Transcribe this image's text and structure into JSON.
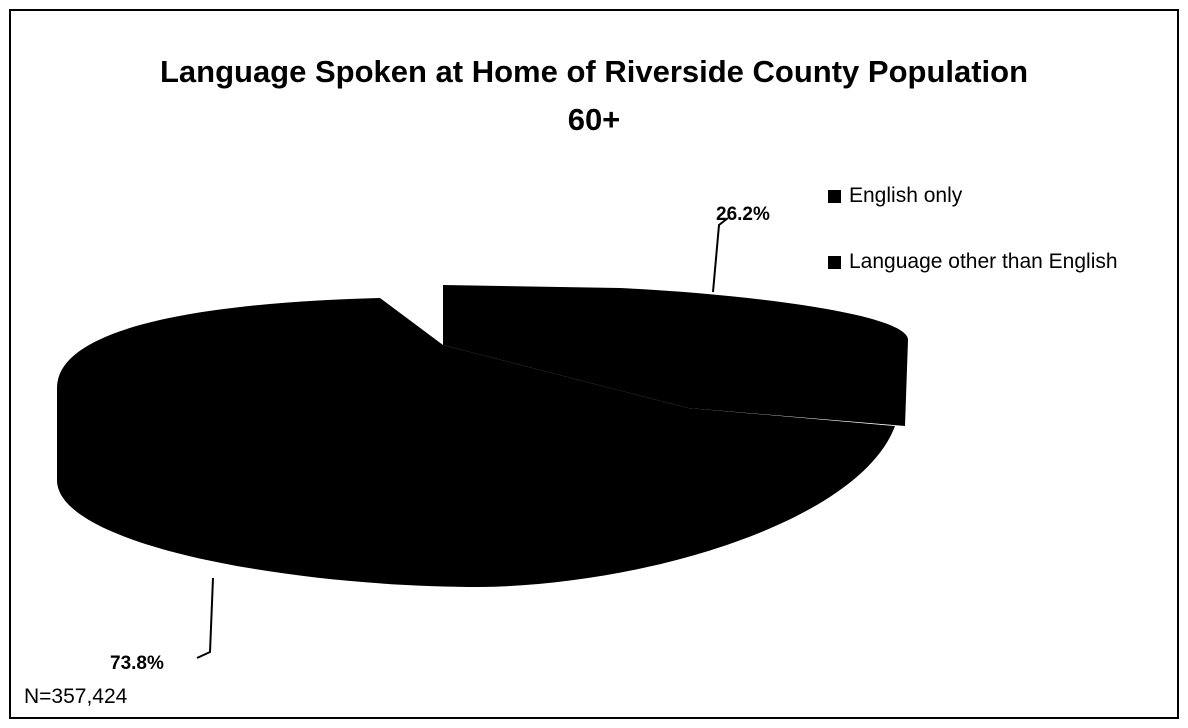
{
  "chart_data": {
    "type": "pie",
    "title": "Language Spoken at Home of Riverside County Population 60+",
    "title_line1": "Language Spoken at Home of Riverside County Population",
    "title_line2": "60+",
    "slices": [
      {
        "name": "English only",
        "value": 26.2,
        "label": "26.2%"
      },
      {
        "name": "Language other than English",
        "value": 73.8,
        "label": "73.8%"
      }
    ],
    "legend_position": "right",
    "three_d": true,
    "note": "N=357,424",
    "colors": [
      "#000000",
      "#000000"
    ]
  }
}
